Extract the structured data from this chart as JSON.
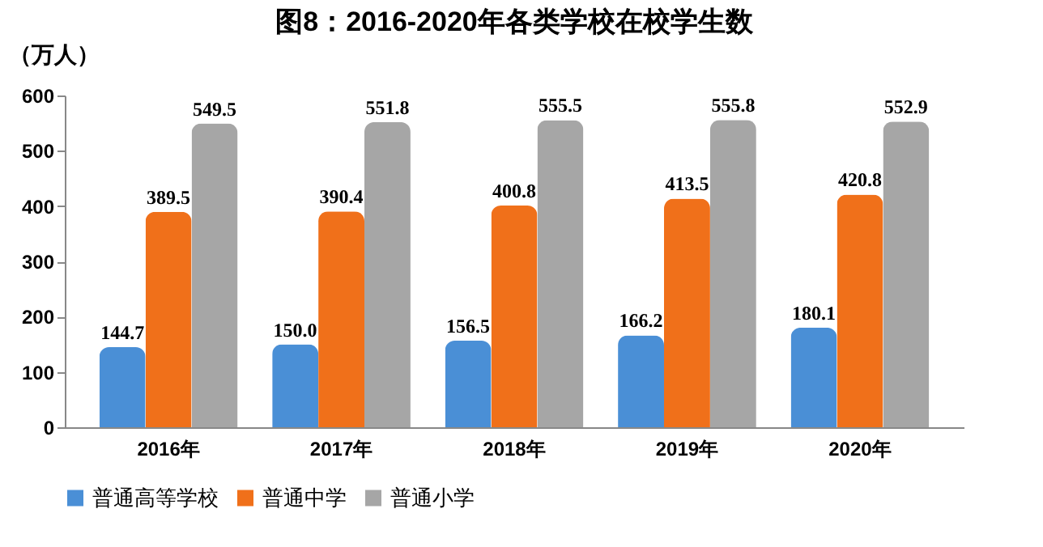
{
  "chart_data": {
    "type": "bar",
    "title": "图8：2016-2020年各类学校在校学生数",
    "ylabel": "（万人）",
    "categories": [
      "2016年",
      "2017年",
      "2018年",
      "2019年",
      "2020年"
    ],
    "series": [
      {
        "name": "普通高等学校",
        "color": "#4a8fd6",
        "values": [
          144.7,
          150.0,
          156.5,
          166.2,
          180.1
        ],
        "value_labels": [
          "144.7",
          "150.0",
          "156.5",
          "166.2",
          "180.1"
        ]
      },
      {
        "name": "普通中学",
        "color": "#f0701a",
        "values": [
          389.5,
          390.4,
          400.8,
          413.5,
          420.8
        ],
        "value_labels": [
          "389.5",
          "390.4",
          "400.8",
          "413.5",
          "420.8"
        ]
      },
      {
        "name": "普通小学",
        "color": "#a6a6a6",
        "values": [
          549.5,
          551.8,
          555.5,
          555.8,
          552.9
        ],
        "value_labels": [
          "549.5",
          "551.8",
          "555.5",
          "555.8",
          "552.9"
        ]
      }
    ],
    "ylim": [
      0,
      600
    ],
    "yticks": [
      0,
      100,
      200,
      300,
      400,
      500,
      600
    ],
    "grid": false,
    "legend": "bottom"
  }
}
